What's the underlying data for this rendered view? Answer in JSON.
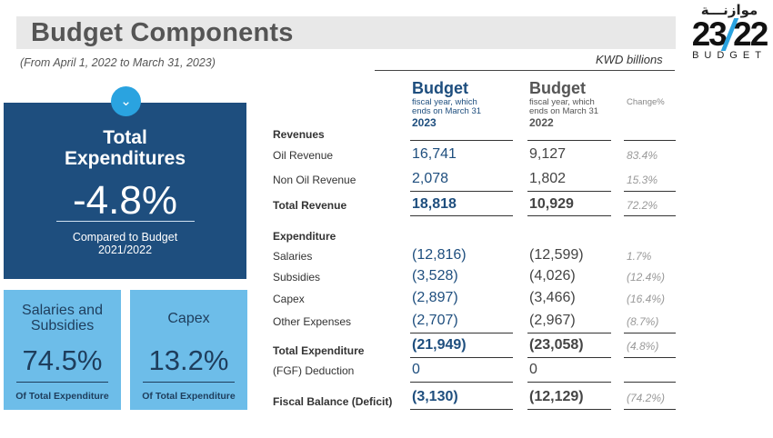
{
  "header": {
    "title": "Budget Components",
    "subtitle": "(From April 1, 2022 to March 31, 2023)",
    "units": "KWD billions"
  },
  "logo": {
    "arabic": "موازنـــة",
    "numbers": "23 22",
    "word": "BUDGET",
    "accent": "#2aa3e0"
  },
  "total_box": {
    "title_line1": "Total",
    "title_line2": "Expenditures",
    "percent": "-4.8%",
    "compare_line1": "Compared to Budget",
    "compare_line2": "2021/2022",
    "color": "#1e4e7e"
  },
  "salaries_box": {
    "title_line1": "Salaries and",
    "title_line2": "Subsidies",
    "percent": "74.5%",
    "caption": "Of Total Expenditure"
  },
  "capex_box": {
    "title": "Capex",
    "percent": "13.2%",
    "caption": "Of Total Expenditure"
  },
  "table": {
    "col2023": {
      "big": "Budget",
      "line1": "fiscal year, which",
      "line2": "ends on March 31",
      "year": "2023"
    },
    "col2022": {
      "big": "Budget",
      "line1": "fiscal year, which",
      "line2": "ends on March 31",
      "year": "2022"
    },
    "change_header": "Change%",
    "revenues_section": "Revenues",
    "expenditure_section": "Expenditure",
    "rows": [
      {
        "label": "Oil Revenue",
        "v2023": "16,741",
        "v2022": "9,127",
        "change": "83.4%"
      },
      {
        "label": "Non Oil Revenue",
        "v2023": "2,078",
        "v2022": "1,802",
        "change": "15.3%"
      },
      {
        "label": "Total Revenue",
        "v2023": "18,818",
        "v2022": "10,929",
        "change": "72.2%"
      },
      {
        "label": "Salaries",
        "v2023": "(12,816)",
        "v2022": "(12,599)",
        "change": "1.7%"
      },
      {
        "label": "Subsidies",
        "v2023": "(3,528)",
        "v2022": "(4,026)",
        "change": "(12.4%)"
      },
      {
        "label": "Capex",
        "v2023": "(2,897)",
        "v2022": "(3,466)",
        "change": "(16.4%)"
      },
      {
        "label": "Other Expenses",
        "v2023": "(2,707)",
        "v2022": "(2,967)",
        "change": "(8.7%)"
      },
      {
        "label": "Total Expenditure",
        "v2023": "(21,949)",
        "v2022": "(23,058)",
        "change": "(4.8%)"
      },
      {
        "label": "(FGF) Deduction",
        "v2023": "0",
        "v2022": "0",
        "change": ""
      },
      {
        "label": "Fiscal Balance (Deficit)",
        "v2023": "(3,130)",
        "v2022": "(12,129)",
        "change": "(74.2%)"
      }
    ]
  }
}
